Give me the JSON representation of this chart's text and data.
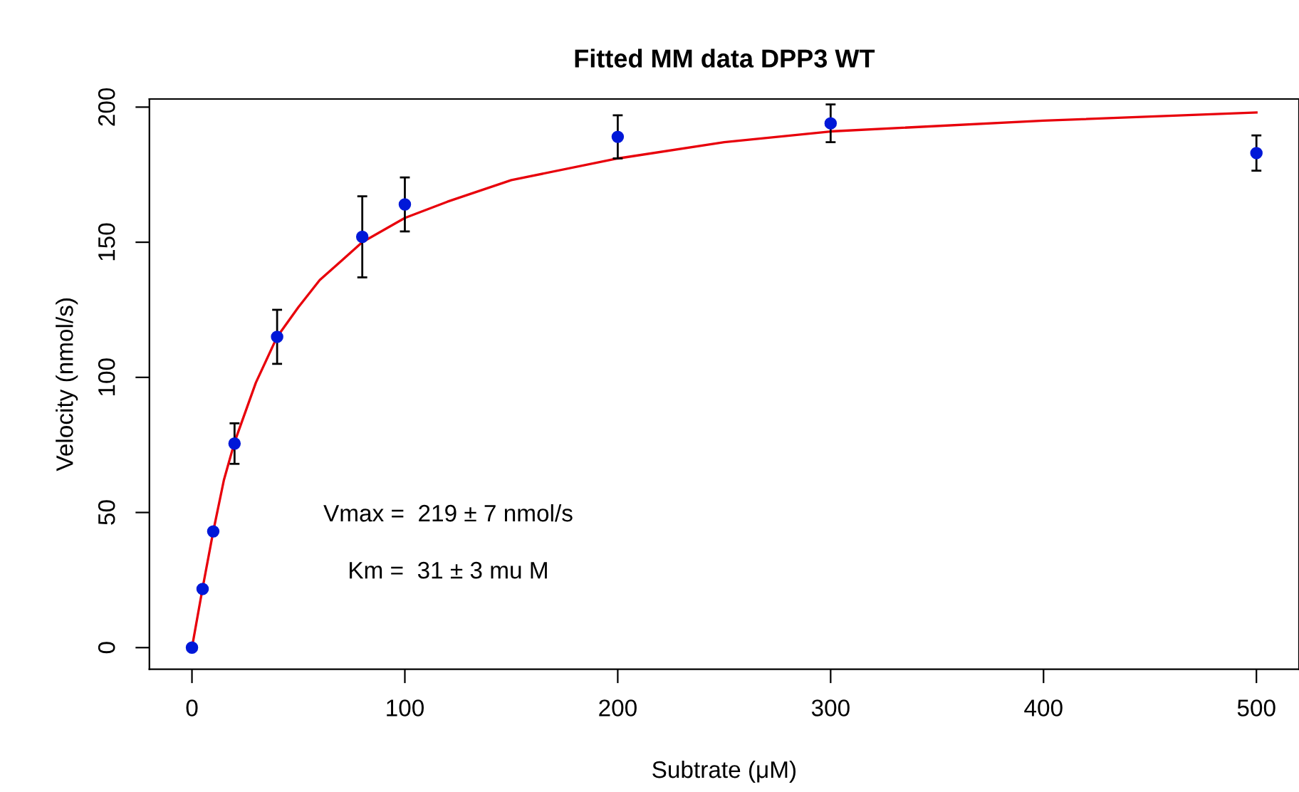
{
  "chart_data": {
    "type": "scatter",
    "title": "Fitted MM data DPP3 WT",
    "xlabel": "Subtrate (μM)",
    "ylabel": "Velocity (nmol/s)",
    "annotations": [
      "Vmax =  219 ± 7 nmol/s",
      "Km =  31 ± 3 mu M"
    ],
    "series": [
      {
        "type": "line",
        "color": "#e8000b",
        "x": [
          0,
          5,
          10,
          15,
          20,
          30,
          40,
          50,
          60,
          70,
          80,
          100,
          120,
          150,
          200,
          250,
          300,
          400,
          500
        ],
        "values": [
          0,
          22,
          43,
          62,
          76,
          98,
          115,
          126,
          136,
          143,
          150,
          159,
          165,
          173,
          181,
          187,
          191,
          195,
          198
        ],
        "marker": "none",
        "line_style": "solid"
      },
      {
        "color": "#0018d8",
        "marker": "circle",
        "x": [
          0,
          5,
          10,
          20,
          40,
          80,
          100,
          200,
          300,
          500
        ],
        "values": [
          0,
          21.7,
          43,
          75.5,
          115,
          152,
          164,
          189,
          194,
          183
        ],
        "errors": [
          null,
          null,
          null,
          7.5,
          10,
          15,
          10,
          8,
          7,
          6.5
        ]
      }
    ],
    "xlim": [
      -20,
      520
    ],
    "ylim": [
      -8,
      203
    ],
    "xticks": [
      0,
      100,
      200,
      300,
      400,
      500
    ],
    "yticks": [
      0,
      50,
      100,
      150,
      200
    ],
    "grid": false,
    "legend": false
  }
}
